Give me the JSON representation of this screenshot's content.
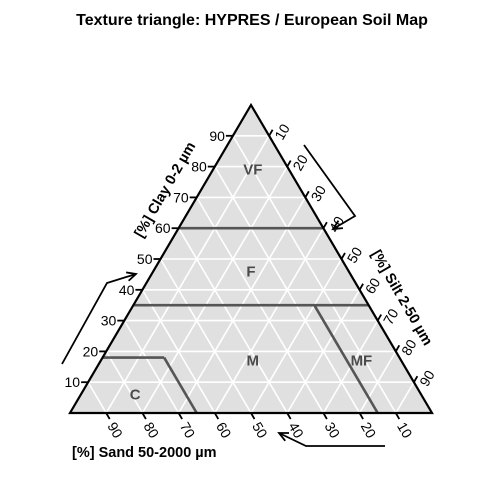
{
  "title": "Texture triangle: HYPRES / European Soil Map",
  "axes": {
    "clay": {
      "label": "[%] Clay 0-2 µm",
      "ticks": [
        "10",
        "20",
        "30",
        "40",
        "50",
        "60",
        "70",
        "80",
        "90"
      ]
    },
    "silt": {
      "label": "[%] Silt 2-50 µm",
      "ticks": [
        "10",
        "20",
        "30",
        "40",
        "50",
        "60",
        "70",
        "80",
        "90"
      ]
    },
    "sand": {
      "label": "[%] Sand 50-2000 µm",
      "ticks": [
        "90",
        "80",
        "70",
        "60",
        "50",
        "40",
        "30",
        "20",
        "10"
      ]
    }
  },
  "classes": [
    {
      "code": "VF",
      "clay": 79,
      "silt": 11,
      "sand": 10
    },
    {
      "code": "F",
      "clay": 46,
      "silt": 27,
      "sand": 27
    },
    {
      "code": "M",
      "clay": 17,
      "silt": 42,
      "sand": 41
    },
    {
      "code": "MF",
      "clay": 17,
      "silt": 72,
      "sand": 11
    },
    {
      "code": "C",
      "clay": 6,
      "silt": 15,
      "sand": 79
    }
  ],
  "boundaries": [
    {
      "from": {
        "clay": 60,
        "silt": 0
      },
      "to": {
        "clay": 60,
        "silt": 40
      }
    },
    {
      "from": {
        "clay": 35,
        "silt": 0
      },
      "to": {
        "clay": 35,
        "silt": 65
      }
    },
    {
      "from": {
        "clay": 18,
        "silt": 0
      },
      "to": {
        "clay": 18,
        "silt": 17
      }
    },
    {
      "from": {
        "clay": 18,
        "silt": 17
      },
      "to": {
        "clay": 0,
        "silt": 35
      }
    },
    {
      "from": {
        "clay": 35,
        "silt": 50
      },
      "to": {
        "clay": 0,
        "silt": 85
      }
    }
  ],
  "colors": {
    "triangle_fill": "#e0e0e0",
    "grid": "#ffffff",
    "boundary": "#555555",
    "label": "#4a4a4a"
  }
}
